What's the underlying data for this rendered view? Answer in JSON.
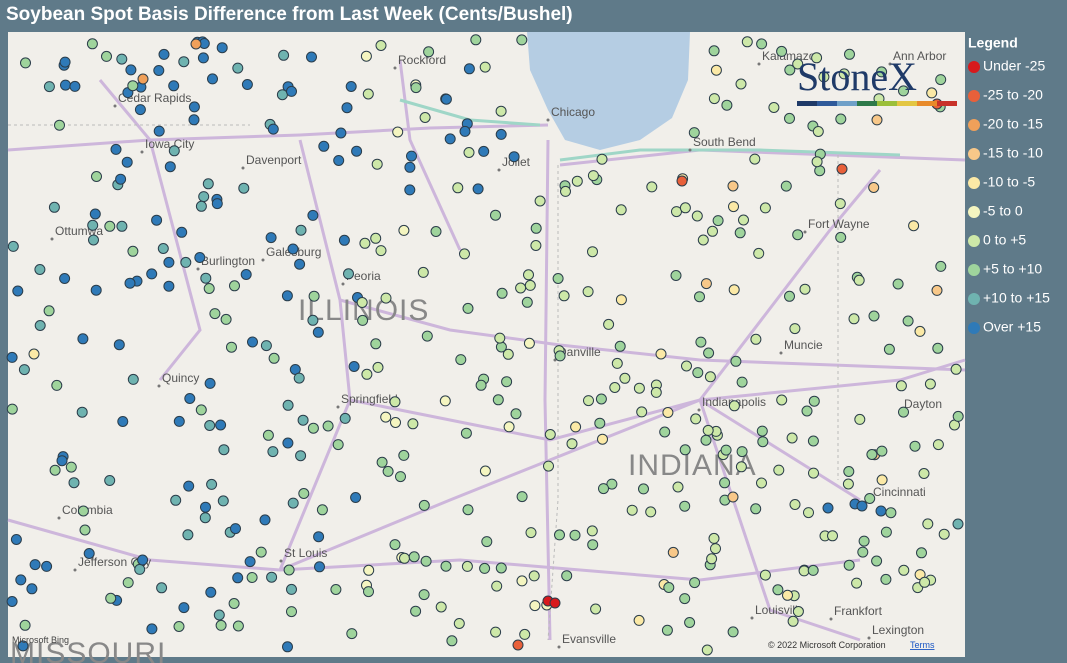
{
  "title": "Soybean Spot Basis Difference from Last Week (Cents/Bushel)",
  "legend": {
    "title": "Legend",
    "items": [
      {
        "label": "Under -25",
        "color": "#d7191c"
      },
      {
        "label": "-25 to -20",
        "color": "#e8603a"
      },
      {
        "label": "-20 to -15",
        "color": "#f0a05a"
      },
      {
        "label": "-15 to -10",
        "color": "#f8c889"
      },
      {
        "label": "-10 to -5",
        "color": "#fbe9a6"
      },
      {
        "label": "-5 to 0",
        "color": "#f4f5c0"
      },
      {
        "label": "0 to +5",
        "color": "#cde8a8"
      },
      {
        "label": "+5 to +10",
        "color": "#9fd49c"
      },
      {
        "label": "+10 to +15",
        "color": "#6fb3b0"
      },
      {
        "label": "Over +15",
        "color": "#2f7ab8"
      }
    ]
  },
  "map": {
    "places": [
      "Rockford",
      "Kalamazoo",
      "Ann Arbor",
      "Cedar Rapids",
      "Chicago",
      "Iowa City",
      "Davenport",
      "Joliet",
      "South Bend",
      "Ottumwa",
      "Galesburg",
      "Burlington",
      "Fort Wayne",
      "Peoria",
      "Danville",
      "Muncie",
      "Quincy",
      "Springfield",
      "Indianapolis",
      "Dayton",
      "Columbia",
      "Cincinnati",
      "St Louis",
      "Jefferson City",
      "Louisville",
      "Frankfort",
      "Evansville",
      "Lexington"
    ],
    "states": [
      "ILLINOIS",
      "INDIANA",
      "MISSOURI"
    ]
  },
  "logo": "StoneX",
  "attribution": {
    "bing": "Microsoft Bing",
    "copyright": "© 2022 Microsoft Corporation",
    "terms": "Terms"
  }
}
